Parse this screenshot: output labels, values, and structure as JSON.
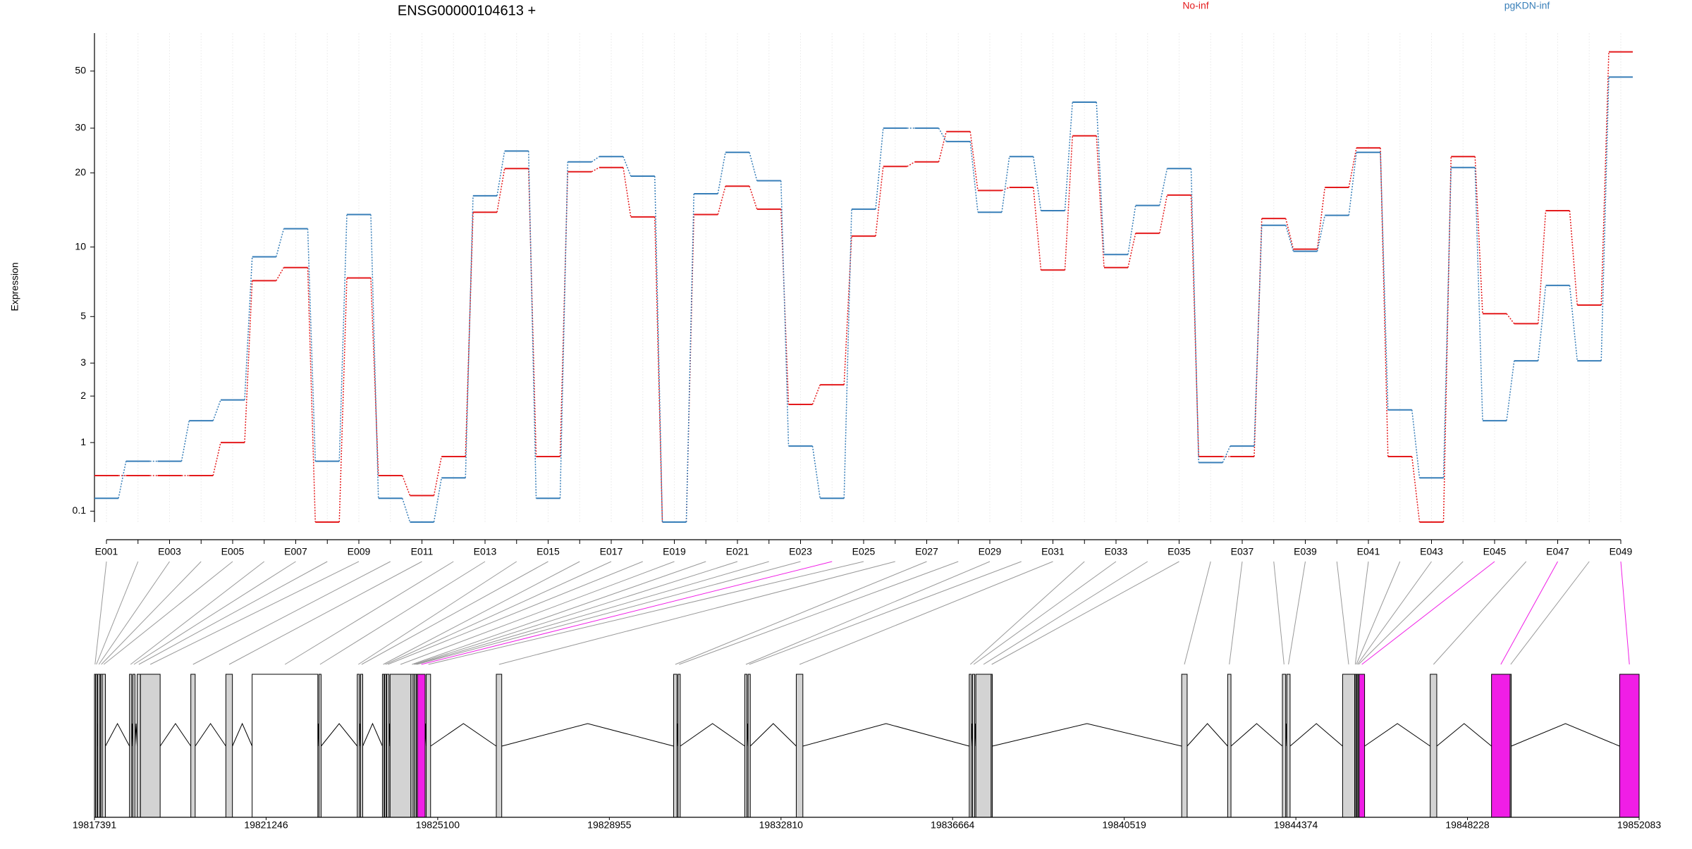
{
  "chart_data": {
    "type": "line",
    "title": "ENSG00000104613 +",
    "y_label": "Expression",
    "yscale": "log1p",
    "ylim": [
      0,
      70
    ],
    "yticks": [
      0.1,
      1,
      2,
      3,
      5,
      10,
      20,
      30,
      50
    ],
    "grid": true,
    "categories": [
      "E001",
      null,
      "E003",
      null,
      "E005",
      null,
      "E007",
      null,
      "E009",
      null,
      "E011",
      null,
      "E013",
      null,
      "E015",
      null,
      "E017",
      null,
      "E019",
      null,
      "E021",
      null,
      "E023",
      null,
      "E025",
      null,
      "E027",
      null,
      "E029",
      null,
      "E031",
      null,
      "E033",
      null,
      "E035",
      null,
      "E037",
      null,
      "E039",
      null,
      "E041",
      null,
      "E043",
      null,
      "E045",
      null,
      "E047",
      null,
      "E049"
    ],
    "series": [
      {
        "name": "No-inf",
        "color": "#e41a1c",
        "values": [
          0.5,
          0.5,
          0.5,
          0.5,
          1.0,
          7.2,
          8.2,
          0,
          7.4,
          0.5,
          0.26,
          0.77,
          13.9,
          20.8,
          0.77,
          20.2,
          21.0,
          13.3,
          0,
          13.6,
          17.7,
          14.3,
          1.79,
          2.31,
          11.1,
          21.2,
          22.1,
          29.1,
          17.0,
          17.5,
          8.0,
          28.0,
          8.2,
          11.4,
          16.3,
          0.77,
          0.77,
          13.1,
          9.8,
          17.5,
          25.1,
          0.77,
          0,
          23.2,
          5.15,
          4.64,
          14.1,
          5.63,
          59.3
        ]
      },
      {
        "name": "pgKDN-inf",
        "color": "#377eb8",
        "values": [
          0.23,
          0.7,
          0.7,
          1.42,
          1.9,
          9.1,
          11.9,
          0.7,
          13.6,
          0.23,
          0,
          0.47,
          16.2,
          24.4,
          0.23,
          22.1,
          23.2,
          19.4,
          0,
          16.5,
          24.1,
          18.6,
          0.94,
          0.23,
          14.3,
          30.0,
          30.0,
          26.6,
          13.9,
          23.2,
          14.1,
          37.9,
          9.3,
          14.8,
          20.8,
          0.68,
          0.94,
          12.3,
          9.6,
          13.5,
          24.1,
          1.66,
          0.47,
          21.0,
          1.42,
          3.08,
          6.87,
          3.08,
          47.4
        ]
      }
    ],
    "genomic_xlim": [
      19817391,
      19852083
    ],
    "genomic_xticks": [
      19817391,
      19821246,
      19825100,
      19828955,
      19832810,
      19836664,
      19840519,
      19844374,
      19848228,
      19852083
    ],
    "exons": [
      [
        19817391,
        19817416
      ],
      [
        19817416,
        19817452
      ],
      [
        19817465,
        19817514
      ],
      [
        19817526,
        19817563
      ],
      [
        19817563,
        19817637
      ],
      [
        19818178,
        19818227
      ],
      [
        19818252,
        19818301
      ],
      [
        19818350,
        19818424
      ],
      [
        19818424,
        19818866
      ],
      [
        19819555,
        19819653
      ],
      [
        19820342,
        19820489
      ],
      [
        19820932,
        19822407
      ],
      [
        19822432,
        19822481
      ],
      [
        19823293,
        19823342
      ],
      [
        19823366,
        19823416
      ],
      [
        19823858,
        19823895
      ],
      [
        19823907,
        19823944
      ],
      [
        19823956,
        19824006
      ],
      [
        19824030,
        19824498
      ],
      [
        19824498,
        19824547
      ],
      [
        19824547,
        19824584
      ],
      [
        19824584,
        19824620
      ],
      [
        19824620,
        19824645
      ],
      [
        19824645,
        19824817
      ],
      [
        19824842,
        19824940
      ],
      [
        19826416,
        19826538
      ],
      [
        19830399,
        19830473
      ],
      [
        19830497,
        19830547
      ],
      [
        19831997,
        19832046
      ],
      [
        19832071,
        19832120
      ],
      [
        19833153,
        19833301
      ],
      [
        19837038,
        19837087
      ],
      [
        19837112,
        19837161
      ],
      [
        19837186,
        19837530
      ],
      [
        19837530,
        19837555
      ],
      [
        19841809,
        19841932
      ],
      [
        19842842,
        19842916
      ],
      [
        19844071,
        19844145
      ],
      [
        19844170,
        19844244
      ],
      [
        19845424,
        19845695
      ],
      [
        19845695,
        19845719
      ],
      [
        19845719,
        19845744
      ],
      [
        19845744,
        19845769
      ],
      [
        19845769,
        19845794
      ],
      [
        19845794,
        19845917
      ],
      [
        19847391,
        19847538
      ],
      [
        19848768,
        19849186
      ],
      [
        19849186,
        19849211
      ],
      [
        19851646,
        19852083
      ]
    ],
    "exon_colors": [
      "#d3d3d3",
      "#d3d3d3",
      "#d3d3d3",
      "#d3d3d3",
      "#d3d3d3",
      "#d3d3d3",
      "#d3d3d3",
      "#d3d3d3",
      "#d3d3d3",
      "#d3d3d3",
      "#d3d3d3",
      "#ffffff",
      "#d3d3d3",
      "#d3d3d3",
      "#d3d3d3",
      "#d3d3d3",
      "#d3d3d3",
      "#d3d3d3",
      "#d3d3d3",
      "#d3d3d3",
      "#d3d3d3",
      "#d3d3d3",
      "#d3d3d3",
      "#f01ee6",
      "#d3d3d3",
      "#d3d3d3",
      "#d3d3d3",
      "#d3d3d3",
      "#d3d3d3",
      "#d3d3d3",
      "#d3d3d3",
      "#d3d3d3",
      "#d3d3d3",
      "#d3d3d3",
      "#d3d3d3",
      "#d3d3d3",
      "#d3d3d3",
      "#d3d3d3",
      "#d3d3d3",
      "#d3d3d3",
      "#d3d3d3",
      "#d3d3d3",
      "#d3d3d3",
      "#d3d3d3",
      "#f01ee6",
      "#d3d3d3",
      "#f01ee6",
      "#d3d3d3",
      "#f01ee6"
    ]
  }
}
